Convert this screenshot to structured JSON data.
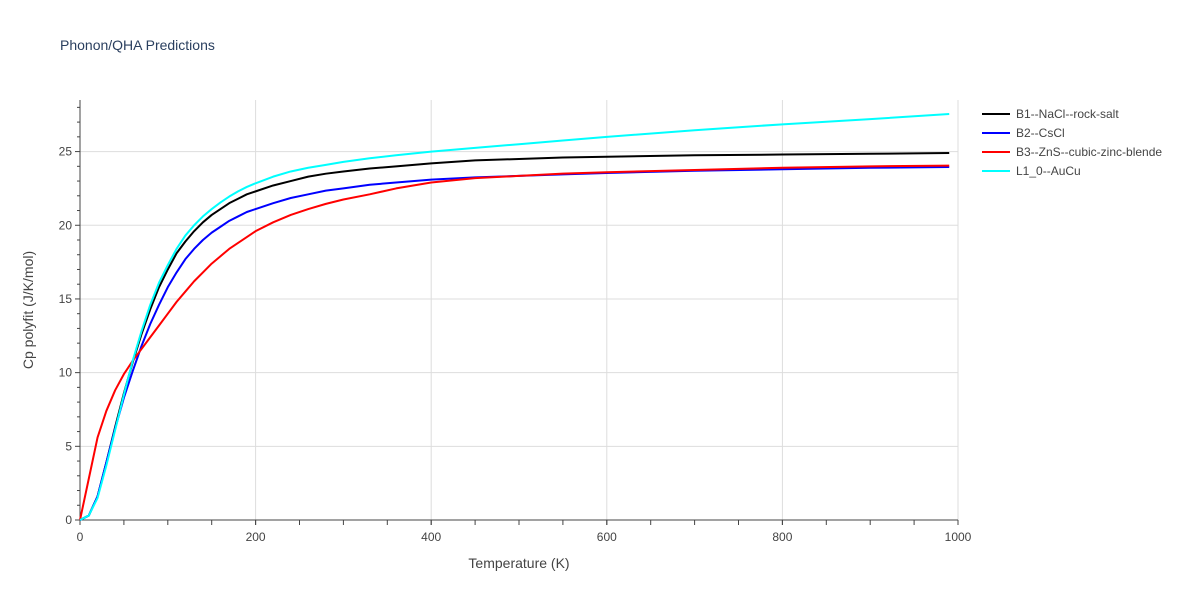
{
  "chart_data": {
    "type": "line",
    "title": "Phonon/QHA Predictions",
    "xlabel": "Temperature (K)",
    "ylabel": "Cp polyfit (J/K/mol)",
    "xlim": [
      0,
      1000
    ],
    "ylim": [
      0,
      28.5
    ],
    "xticks": [
      0,
      200,
      400,
      600,
      800,
      1000
    ],
    "xtick_labels": [
      "0",
      "200",
      "400",
      "600",
      "800",
      "1000"
    ],
    "yticks": [
      0,
      5,
      10,
      15,
      20,
      25
    ],
    "ytick_labels": [
      "0",
      "5",
      "10",
      "15",
      "20",
      "25"
    ],
    "grid": true,
    "legend_position": "top-right, outside plot",
    "series": [
      {
        "name": "B1--NaCl--rock-salt",
        "color": "#000000",
        "x": [
          0,
          10,
          20,
          30,
          40,
          50,
          60,
          70,
          80,
          90,
          100,
          110,
          120,
          130,
          140,
          150,
          160,
          170,
          180,
          190,
          200,
          220,
          240,
          260,
          280,
          300,
          330,
          360,
          400,
          450,
          500,
          550,
          600,
          700,
          800,
          900,
          990
        ],
        "y": [
          0,
          0.3,
          1.6,
          3.9,
          6.3,
          8.6,
          10.7,
          12.6,
          14.3,
          15.8,
          17.0,
          18.1,
          18.9,
          19.6,
          20.2,
          20.7,
          21.1,
          21.5,
          21.8,
          22.1,
          22.3,
          22.7,
          23.0,
          23.3,
          23.5,
          23.65,
          23.85,
          24.0,
          24.2,
          24.4,
          24.5,
          24.6,
          24.65,
          24.75,
          24.8,
          24.85,
          24.9
        ]
      },
      {
        "name": "B2--CsCl",
        "color": "#0000ff",
        "x": [
          0,
          10,
          20,
          30,
          40,
          50,
          60,
          70,
          80,
          90,
          100,
          110,
          120,
          130,
          140,
          150,
          160,
          170,
          180,
          190,
          200,
          220,
          240,
          260,
          280,
          300,
          330,
          360,
          400,
          450,
          500,
          550,
          600,
          700,
          800,
          900,
          990
        ],
        "y": [
          0,
          0.3,
          1.6,
          3.9,
          6.2,
          8.3,
          10.1,
          11.8,
          13.3,
          14.6,
          15.8,
          16.8,
          17.7,
          18.4,
          19.0,
          19.5,
          19.9,
          20.3,
          20.6,
          20.9,
          21.1,
          21.5,
          21.85,
          22.1,
          22.35,
          22.5,
          22.75,
          22.9,
          23.1,
          23.25,
          23.35,
          23.45,
          23.55,
          23.7,
          23.8,
          23.9,
          23.95
        ]
      },
      {
        "name": "B3--ZnS--cubic-zinc-blende",
        "color": "#ff0000",
        "x": [
          0,
          10,
          20,
          30,
          40,
          50,
          60,
          70,
          80,
          90,
          100,
          110,
          120,
          130,
          140,
          150,
          160,
          170,
          180,
          190,
          200,
          220,
          240,
          260,
          280,
          300,
          330,
          360,
          400,
          450,
          500,
          550,
          600,
          700,
          800,
          900,
          990
        ],
        "y": [
          0,
          2.8,
          5.6,
          7.4,
          8.8,
          9.9,
          10.8,
          11.6,
          12.4,
          13.2,
          14.0,
          14.8,
          15.5,
          16.2,
          16.8,
          17.4,
          17.9,
          18.4,
          18.8,
          19.2,
          19.6,
          20.2,
          20.7,
          21.1,
          21.45,
          21.75,
          22.1,
          22.5,
          22.9,
          23.2,
          23.35,
          23.5,
          23.6,
          23.75,
          23.9,
          24.0,
          24.05
        ]
      },
      {
        "name": "L1_0--AuCu",
        "color": "#00ffff",
        "x": [
          0,
          10,
          20,
          30,
          40,
          50,
          60,
          70,
          80,
          90,
          100,
          110,
          120,
          130,
          140,
          150,
          160,
          170,
          180,
          190,
          200,
          220,
          240,
          260,
          280,
          300,
          330,
          360,
          400,
          450,
          500,
          550,
          600,
          700,
          800,
          900,
          990
        ],
        "y": [
          0,
          0.3,
          1.5,
          3.7,
          6.1,
          8.5,
          10.8,
          12.8,
          14.6,
          16.1,
          17.3,
          18.4,
          19.3,
          20.0,
          20.6,
          21.1,
          21.55,
          21.95,
          22.3,
          22.6,
          22.85,
          23.3,
          23.65,
          23.9,
          24.1,
          24.3,
          24.55,
          24.75,
          25.0,
          25.25,
          25.5,
          25.75,
          26.0,
          26.45,
          26.85,
          27.2,
          27.55
        ]
      }
    ]
  }
}
